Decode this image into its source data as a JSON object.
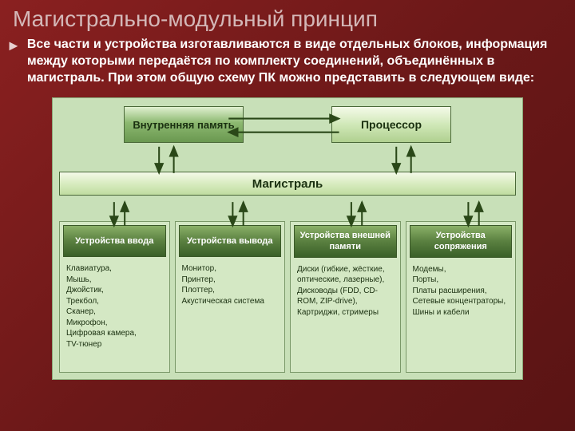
{
  "title": "Магистрально-модульный принцип",
  "bullet": "Все части и устройства изготавливаются в виде отдельных блоков, информация между которыми передаётся по комплекту соединений, объединённых в магистраль. При этом общую схему ПК можно представить в следующем виде:",
  "diagram": {
    "background": "#c8e0b8",
    "border": "#8aa878",
    "memory": {
      "label": "Внутренняя память"
    },
    "cpu": {
      "label": "Процессор"
    },
    "bus": {
      "label": "Магистраль"
    },
    "devices": [
      {
        "head": "Устройства ввода",
        "list": "Клавиатура,\nМышь,\nДжойстик,\nТрекбол,\nСканер,\nМикрофон,\nЦифровая камера,\nTV-тюнер"
      },
      {
        "head": "Устройства вывода",
        "list": "Монитор,\nПринтер,\nПлоттер,\nАкустическая система"
      },
      {
        "head": "Устройства внешней памяти",
        "list": "Диски (гибкие, жёсткие, оптические, лазерные),\nДисководы (FDD, CD-ROM, ZIP-drive),\nКартриджи, стримеры"
      },
      {
        "head": "Устройства сопряжения",
        "list": "Модемы,\nПорты,\nПлаты расширения,\nСетевые концентраторы,\nШины и кабели"
      }
    ],
    "arrow_color": "#2a4818"
  }
}
